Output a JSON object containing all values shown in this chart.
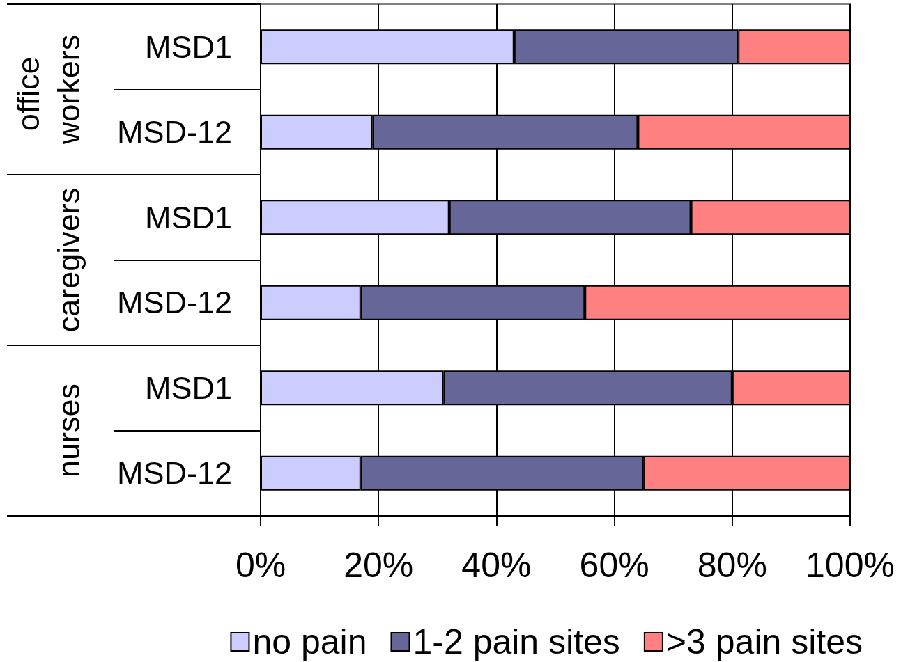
{
  "chart_data": {
    "type": "bar",
    "orientation": "horizontal",
    "stacked": true,
    "categories": [
      "MSD1",
      "MSD-12",
      "MSD1",
      "MSD-12",
      "MSD1",
      "MSD-12"
    ],
    "annotations": [
      "office workers",
      "caregivers",
      "nurses"
    ],
    "series": [
      {
        "name": "no pain",
        "color": "#ccccff",
        "values": [
          43,
          19,
          32,
          17,
          31,
          17
        ]
      },
      {
        "name": "1-2 pain sites",
        "color": "#666699",
        "values": [
          38,
          45,
          41,
          38,
          49,
          48
        ]
      },
      {
        "name": ">3 pain sites",
        "color": "#ff8080",
        "values": [
          19,
          36,
          27,
          45,
          20,
          35
        ]
      }
    ],
    "xlim": [
      0,
      100
    ],
    "xticks": [
      {
        "value": 0,
        "label": "0%"
      },
      {
        "value": 20,
        "label": "20%"
      },
      {
        "value": 40,
        "label": "40%"
      },
      {
        "value": 60,
        "label": "60%"
      },
      {
        "value": 80,
        "label": "80%"
      },
      {
        "value": 100,
        "label": "100%"
      }
    ],
    "grid": "x",
    "legend": "bottom"
  }
}
